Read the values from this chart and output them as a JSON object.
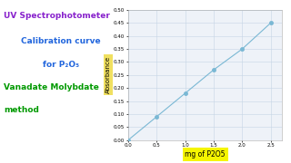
{
  "x": [
    0,
    0.5,
    1.0,
    1.5,
    2.0,
    2.5
  ],
  "y": [
    0,
    0.09,
    0.18,
    0.27,
    0.35,
    0.45
  ],
  "line_color": "#7ab8d4",
  "marker_color": "#7ab8d4",
  "marker_size": 3,
  "xlabel": "mg of P2O5",
  "ylabel": "Absorbance",
  "xlabel_bg": "#f5f500",
  "ylabel_bg": "#f0e060",
  "xlim": [
    0,
    2.7
  ],
  "ylim": [
    0,
    0.5
  ],
  "xticks": [
    0,
    0.5,
    1.0,
    1.5,
    2.0,
    2.5
  ],
  "yticks": [
    0,
    0.05,
    0.1,
    0.15,
    0.2,
    0.25,
    0.3,
    0.35,
    0.4,
    0.45,
    0.5
  ],
  "grid_color": "#c5d5e5",
  "bg_color": "#eef2f8",
  "left_title_line1": "UV Spectrophotometer",
  "left_title_line2": "Calibration curve",
  "left_title_line3": "for P₂O₅",
  "left_title_line4": "Vanadate Molybdate",
  "left_title_line5": "method",
  "color_line1": "#8822cc",
  "color_line2": "#2266dd",
  "color_line34": "#009900",
  "title_fontsize": 6.5,
  "axis_label_fontsize": 5,
  "tick_fontsize": 4
}
